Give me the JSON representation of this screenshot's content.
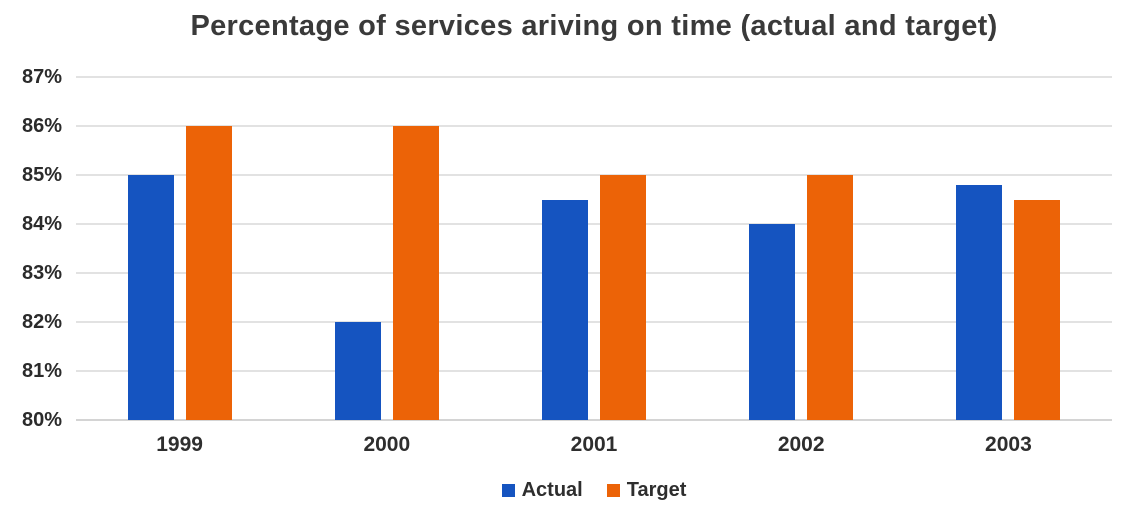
{
  "title": "Percentage of services ariving on time (actual and target)",
  "chart_data": {
    "type": "bar",
    "title": "Percentage of services ariving on time (actual and target)",
    "categories": [
      "1999",
      "2000",
      "2001",
      "2002",
      "2003"
    ],
    "series": [
      {
        "name": "Actual",
        "color": "#1554c0",
        "values": [
          85,
          82,
          84.5,
          84,
          84.8
        ]
      },
      {
        "name": "Target",
        "color": "#ec6307",
        "values": [
          86,
          86,
          85,
          85,
          84.5
        ]
      }
    ],
    "xlabel": "",
    "ylabel": "",
    "ylim": [
      80,
      87
    ],
    "yticks": [
      80,
      81,
      82,
      83,
      84,
      85,
      86,
      87
    ],
    "ytick_suffix": "%",
    "grid": "horizontal",
    "legend_position": "bottom",
    "colors": {
      "title_text": "#3a3a3a",
      "axis_text": "#2b2b2b",
      "gridline": "#e2e2e2",
      "baseline": "#d4d4d4",
      "background": "#ffffff"
    }
  }
}
